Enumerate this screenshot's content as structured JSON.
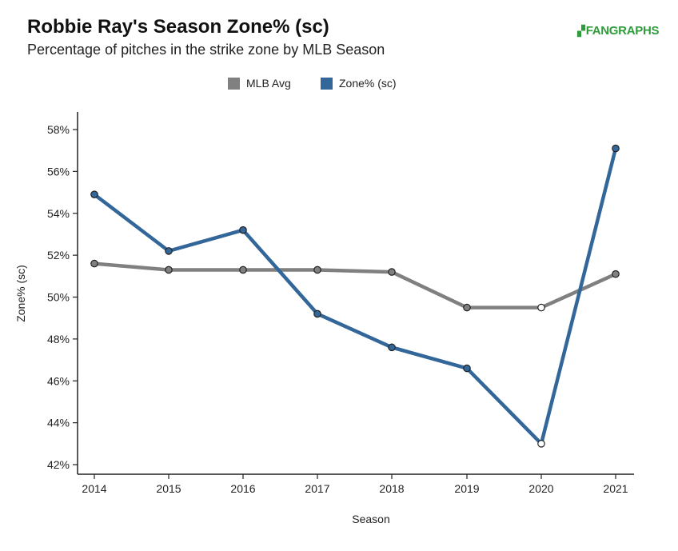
{
  "header": {
    "title": "Robbie Ray's Season Zone% (sc)",
    "subtitle": "Percentage of pitches in the strike zone by MLB Season",
    "logo_text": "FANGRAPHS"
  },
  "colors": {
    "mlb_avg": "#808080",
    "zone": "#336699",
    "logo": "#2e9c3a"
  },
  "chart_data": {
    "type": "line",
    "title": "Robbie Ray's Season Zone% (sc)",
    "subtitle": "Percentage of pitches in the strike zone by MLB Season",
    "xlabel": "Season",
    "ylabel": "Zone% (sc)",
    "x": [
      2014,
      2015,
      2016,
      2017,
      2018,
      2019,
      2020,
      2021
    ],
    "x_tick_labels": [
      "2014",
      "2015",
      "2016",
      "2017",
      "2018",
      "2019",
      "2020",
      "2021"
    ],
    "ylim": [
      41.6,
      58.6
    ],
    "y_ticks": [
      42,
      44,
      46,
      48,
      50,
      52,
      54,
      56,
      58
    ],
    "y_tick_labels": [
      "42%",
      "44%",
      "46%",
      "48%",
      "50%",
      "52%",
      "54%",
      "56%",
      "58%"
    ],
    "grid": false,
    "legend_position": "top-center",
    "series": [
      {
        "name": "MLB Avg",
        "color": "#808080",
        "values": [
          51.6,
          51.3,
          51.3,
          51.3,
          51.2,
          49.5,
          49.5,
          51.1
        ],
        "hollow": [
          false,
          false,
          false,
          false,
          false,
          false,
          true,
          false
        ]
      },
      {
        "name": "Zone% (sc)",
        "color": "#336699",
        "values": [
          54.9,
          52.2,
          53.2,
          49.2,
          47.6,
          46.6,
          43.0,
          57.1
        ],
        "hollow": [
          false,
          false,
          false,
          false,
          false,
          false,
          true,
          false
        ]
      }
    ]
  }
}
